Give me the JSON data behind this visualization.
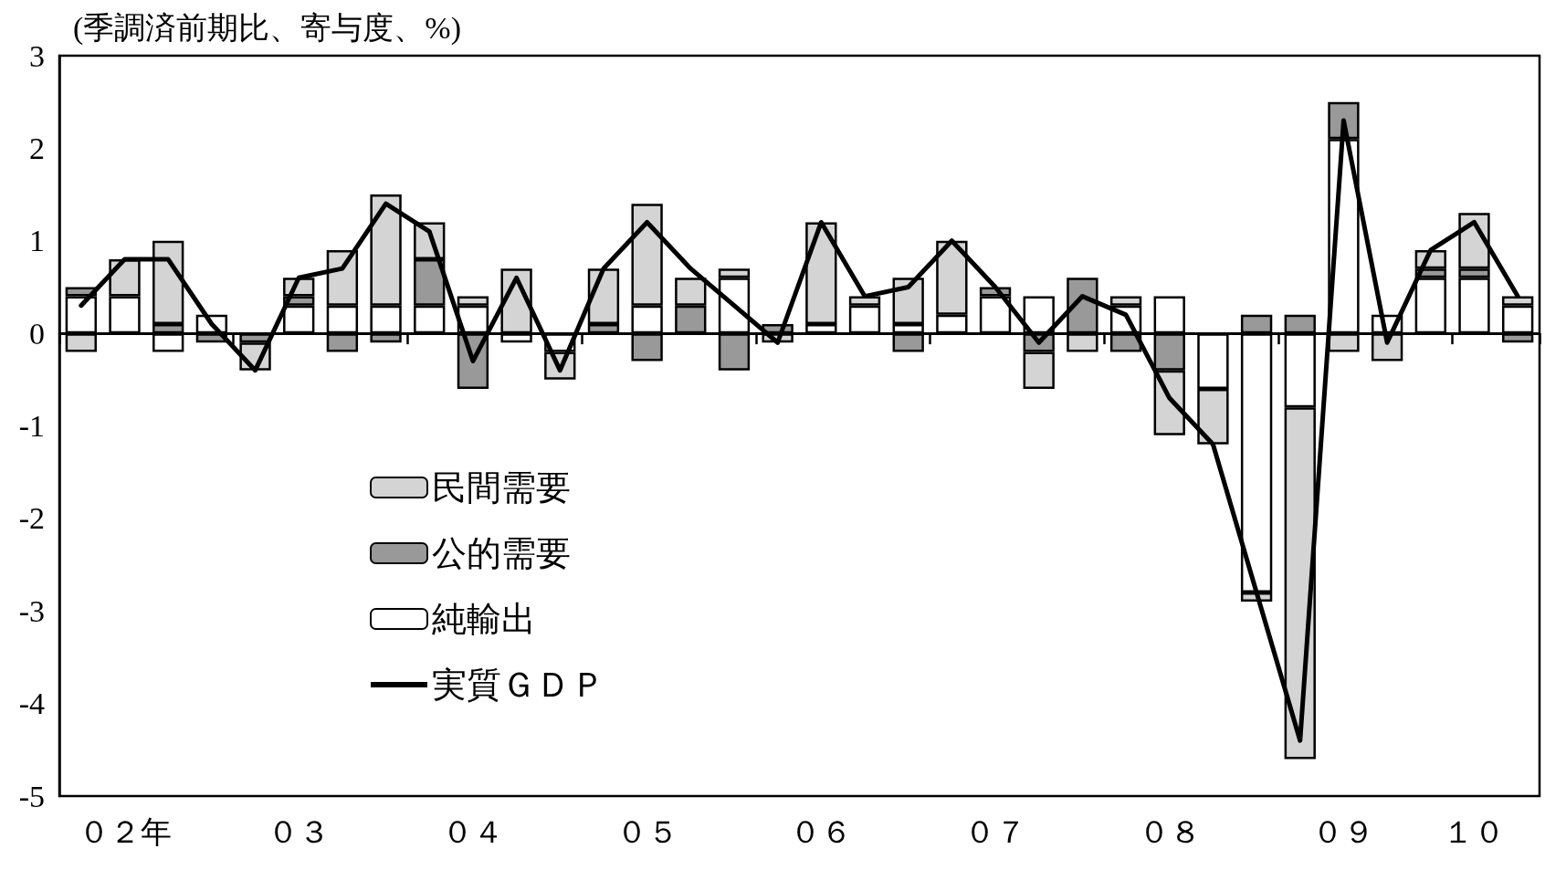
{
  "chart_data": {
    "type": "bar",
    "stacked": true,
    "ylabel": "(季調済前期比、寄与度、%)",
    "categories": [
      null,
      "０２年",
      null,
      null,
      null,
      "０３",
      null,
      null,
      null,
      "０４",
      null,
      null,
      null,
      "０５",
      null,
      null,
      null,
      "０６",
      null,
      null,
      null,
      "０７",
      null,
      null,
      null,
      "０８",
      null,
      null,
      null,
      "０９",
      null,
      null,
      "１０",
      null
    ],
    "ylim": [
      -5,
      3
    ],
    "yticks": [
      -5,
      -4,
      -3,
      -2,
      -1,
      0,
      1,
      2,
      3
    ],
    "grid": false,
    "legend": "left",
    "ref_lines": [
      {
        "axis": "y",
        "value": 0,
        "color": "#000000"
      }
    ],
    "series": [
      {
        "name": "純輸出",
        "color": "#ffffff",
        "values": [
          0.4,
          0.4,
          -0.2,
          0.2,
          0,
          0.3,
          0.3,
          0.3,
          0.3,
          0.3,
          -0.1,
          -0.2,
          0,
          0.3,
          0,
          0.6,
          0,
          0.1,
          0.3,
          0.1,
          0.2,
          0.4,
          0.4,
          0,
          0.3,
          0.4,
          -0.6,
          -2.8,
          -0.8,
          2.1,
          0.2,
          0.6,
          0.6,
          0.3
        ]
      },
      {
        "name": "公的需要",
        "color": "#999999",
        "values": [
          0.1,
          0,
          0.1,
          -0.1,
          -0.1,
          0.1,
          -0.2,
          -0.1,
          0.5,
          -0.6,
          0,
          0,
          0.1,
          -0.3,
          0.3,
          -0.4,
          0.1,
          0,
          0,
          -0.2,
          0,
          0.1,
          -0.2,
          0.6,
          -0.2,
          -0.4,
          0,
          0.2,
          0.2,
          0.4,
          0,
          0.1,
          0.1,
          -0.1
        ]
      },
      {
        "name": "民間需要",
        "color": "#d4d4d4",
        "values": [
          -0.2,
          0.4,
          0.9,
          0,
          -0.3,
          0.2,
          0.6,
          1.2,
          0.4,
          0.1,
          0.7,
          -0.3,
          0.6,
          1.1,
          0.3,
          0.1,
          -0.1,
          1.1,
          0.1,
          0.5,
          0.8,
          0,
          -0.4,
          -0.2,
          0.1,
          -0.7,
          -0.6,
          -0.1,
          -3.8,
          -0.2,
          -0.3,
          0.2,
          0.6,
          0.1
        ]
      },
      {
        "name": "実質ＧＤＰ",
        "type": "line",
        "color": "#000000",
        "marker": "none",
        "line_style": "solid",
        "values": [
          0.3,
          0.8,
          0.8,
          0.1,
          -0.4,
          0.6,
          0.7,
          1.4,
          1.1,
          -0.3,
          0.6,
          -0.4,
          0.7,
          1.2,
          0.7,
          0.3,
          -0.1,
          1.2,
          0.4,
          0.5,
          1.0,
          0.5,
          -0.1,
          0.4,
          0.2,
          -0.7,
          -1.2,
          -2.8,
          -4.4,
          2.3,
          -0.1,
          0.9,
          1.2,
          0.4
        ]
      }
    ]
  }
}
